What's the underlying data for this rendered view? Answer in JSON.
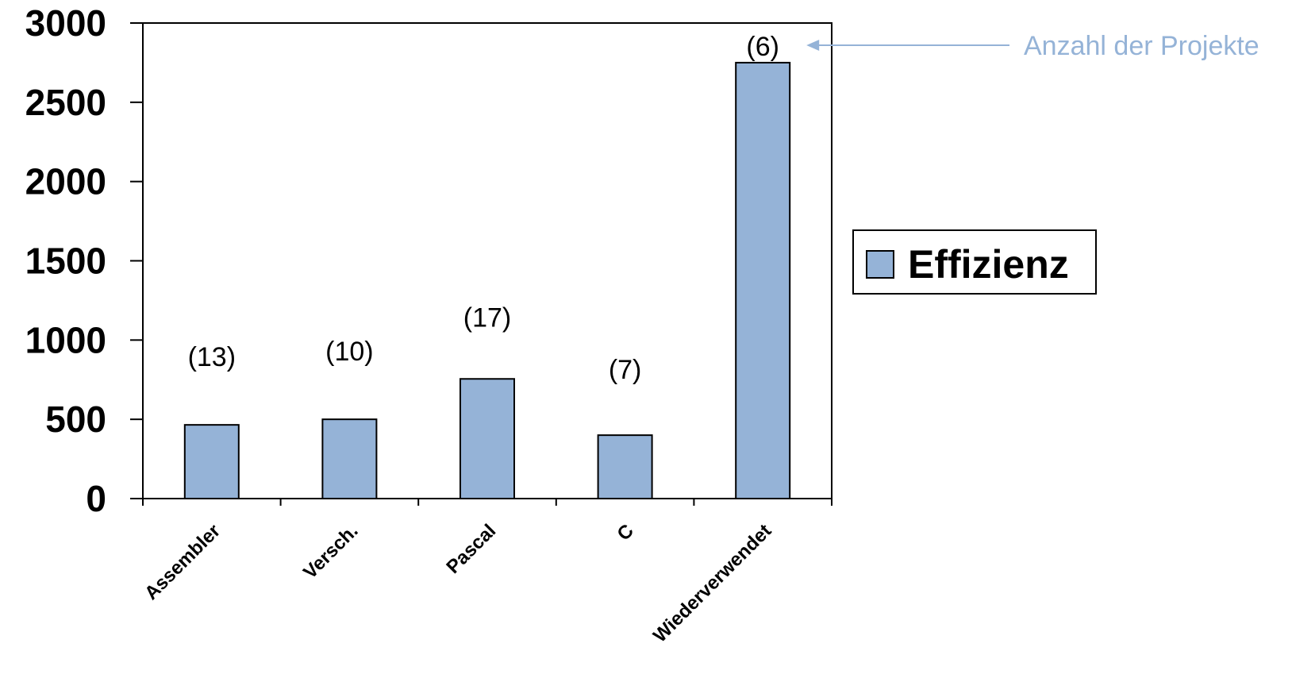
{
  "chart_data": {
    "type": "bar",
    "categories": [
      "Assembler",
      "Versch.",
      "Pascal",
      "C",
      "Wiederverwendet"
    ],
    "series": [
      {
        "name": "Effizienz",
        "values": [
          465,
          500,
          755,
          400,
          2750
        ],
        "color": "#95b3d7"
      }
    ],
    "data_labels": [
      "(13)",
      "(10)",
      "(17)",
      "(7)",
      "(6)"
    ],
    "yticks": [
      "0",
      "500",
      "1000",
      "1500",
      "2000",
      "2500",
      "3000"
    ],
    "ylim": [
      0,
      3000
    ],
    "title": "",
    "xlabel": "",
    "ylabel": "",
    "grid": false,
    "legend_position": "right",
    "annotation": {
      "text": "Anzahl der Projekte",
      "color": "#95b3d7",
      "target_category": "Wiederverwendet"
    }
  }
}
